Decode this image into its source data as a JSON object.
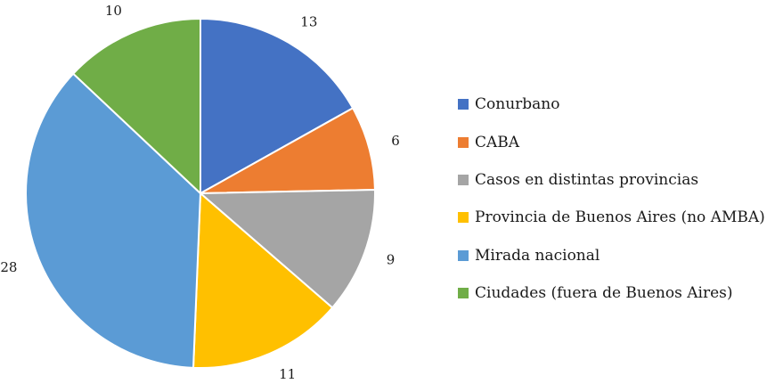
{
  "chart_data": {
    "type": "pie",
    "categories": [
      "Conurbano",
      "CABA",
      "Casos en distintas provincias",
      "Provincia de Buenos Aires (no AMBA)",
      "Mirada nacional",
      "Ciudades (fuera de Buenos Aires)"
    ],
    "values": [
      13,
      6,
      9,
      11,
      28,
      10
    ],
    "colors": [
      "#4472C4",
      "#ED7D31",
      "#A5A5A5",
      "#FFC000",
      "#5B9BD5",
      "#70AD47"
    ],
    "legend_position": "right",
    "start_angle": "12 o'clock, clockwise"
  },
  "legend": {
    "items": [
      {
        "label": "Conurbano",
        "color": "#4472C4"
      },
      {
        "label": "CABA",
        "color": "#ED7D31"
      },
      {
        "label": "Casos en distintas provincias",
        "color": "#A5A5A5"
      },
      {
        "label": "Provincia de Buenos Aires (no AMBA)",
        "color": "#FFC000"
      },
      {
        "label": "Mirada nacional",
        "color": "#5B9BD5"
      },
      {
        "label": "Ciudades (fuera de Buenos Aires)",
        "color": "#70AD47"
      }
    ]
  }
}
